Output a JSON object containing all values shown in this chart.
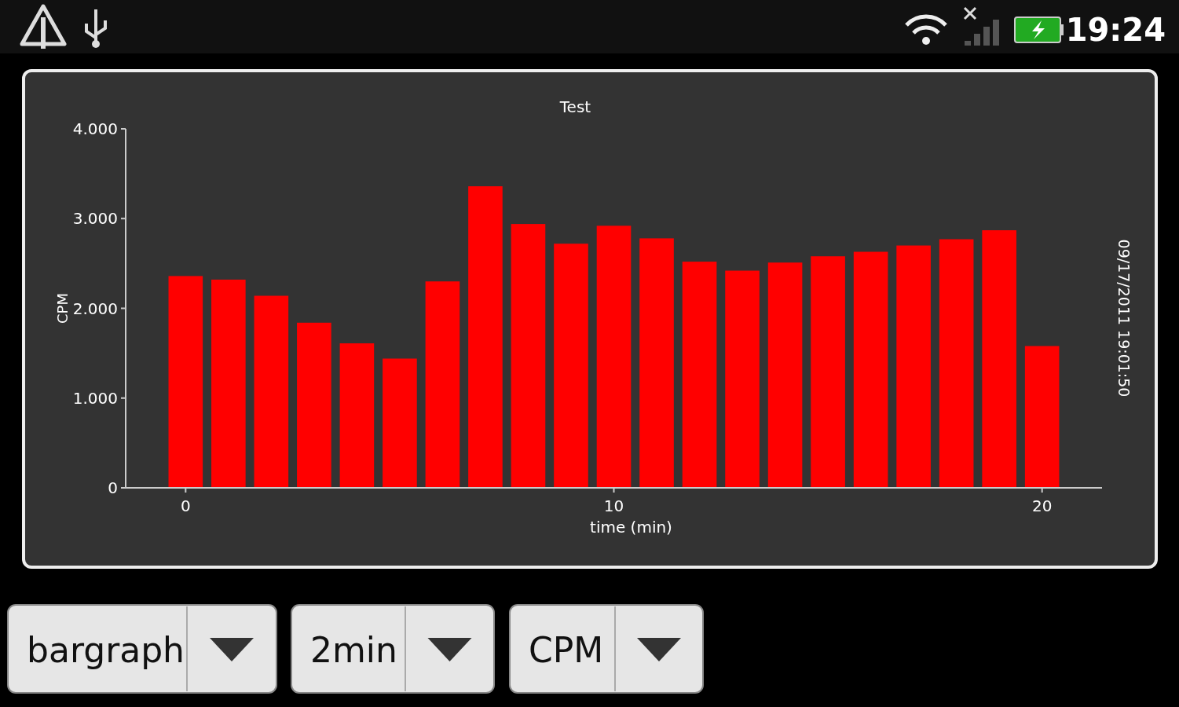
{
  "chart_data": {
    "type": "bar",
    "title": "Test",
    "xlabel": "time (min)",
    "ylabel": "CPM",
    "x": [
      0,
      1,
      2,
      3,
      4,
      5,
      6,
      7,
      8,
      9,
      10,
      11,
      12,
      13,
      14,
      15,
      16,
      17,
      18,
      19,
      20
    ],
    "values": [
      2360,
      2320,
      2140,
      1840,
      1610,
      1440,
      2300,
      3360,
      2940,
      2720,
      2920,
      2780,
      2520,
      2420,
      2510,
      2580,
      2630,
      2700,
      2770,
      2870,
      1580
    ],
    "color": "#ff0000",
    "xlim": [
      -1.4,
      21.4
    ],
    "xticks": [
      0,
      10,
      20
    ],
    "ylim": [
      0,
      4000
    ],
    "yticks": [
      {
        "value": 0,
        "label": "0"
      },
      {
        "value": 1000,
        "label": "1.000"
      },
      {
        "value": 2000,
        "label": "2.000"
      },
      {
        "value": 3000,
        "label": "3.000"
      },
      {
        "value": 4000,
        "label": "4.000"
      }
    ],
    "grid": false,
    "annotations": [
      "09/17/2011 19:01:50",
      "19:24",
      "bargraph",
      "2min",
      "CPM"
    ]
  }
}
